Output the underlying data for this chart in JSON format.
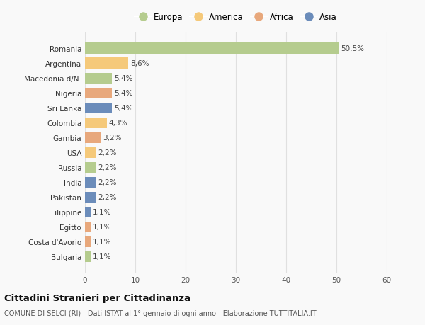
{
  "countries": [
    "Romania",
    "Argentina",
    "Macedonia d/N.",
    "Nigeria",
    "Sri Lanka",
    "Colombia",
    "Gambia",
    "USA",
    "Russia",
    "India",
    "Pakistan",
    "Filippine",
    "Egitto",
    "Costa d'Avorio",
    "Bulgaria"
  ],
  "values": [
    50.5,
    8.6,
    5.4,
    5.4,
    5.4,
    4.3,
    3.2,
    2.2,
    2.2,
    2.2,
    2.2,
    1.1,
    1.1,
    1.1,
    1.1
  ],
  "labels": [
    "50,5%",
    "8,6%",
    "5,4%",
    "5,4%",
    "5,4%",
    "4,3%",
    "3,2%",
    "2,2%",
    "2,2%",
    "2,2%",
    "2,2%",
    "1,1%",
    "1,1%",
    "1,1%",
    "1,1%"
  ],
  "colors": [
    "#b5cc8e",
    "#f5c97a",
    "#b5cc8e",
    "#e8a87c",
    "#6b8cba",
    "#f5c97a",
    "#e8a87c",
    "#f5c97a",
    "#b5cc8e",
    "#6b8cba",
    "#6b8cba",
    "#6b8cba",
    "#e8a87c",
    "#e8a87c",
    "#b5cc8e"
  ],
  "legend_labels": [
    "Europa",
    "America",
    "Africa",
    "Asia"
  ],
  "legend_colors": [
    "#b5cc8e",
    "#f5c97a",
    "#e8a87c",
    "#6b8cba"
  ],
  "xlim": [
    0,
    60
  ],
  "xticks": [
    0,
    10,
    20,
    30,
    40,
    50,
    60
  ],
  "title": "Cittadini Stranieri per Cittadinanza",
  "subtitle": "COMUNE DI SELCI (RI) - Dati ISTAT al 1° gennaio di ogni anno - Elaborazione TUTTITALIA.IT",
  "bg_color": "#f9f9f9",
  "grid_color": "#e0e0e0"
}
